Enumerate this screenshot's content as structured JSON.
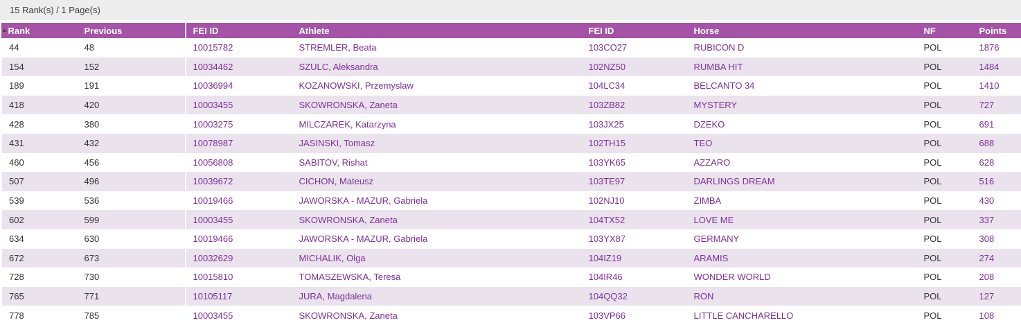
{
  "topbar": {
    "summary_text": "15 Rank(s) / 1 Page(s)"
  },
  "colors": {
    "header_bg": "#a553a7",
    "header_text": "#ffffff",
    "alt_row_bg": "#eae2ed",
    "link_text": "#7f2f9a",
    "plain_text": "#333333",
    "topbar_bg": "#ededed"
  },
  "table": {
    "sort_icon": "▲",
    "sorted_column": "Rank",
    "sort_direction": "ascending",
    "columns": [
      {
        "key": "rank",
        "label": "Rank",
        "cell_name": "rank-cell",
        "link": false
      },
      {
        "key": "previous",
        "label": "Previous",
        "cell_name": "previous-cell",
        "link": false
      },
      {
        "key": "athlete_fei_id",
        "label": "FEI ID",
        "cell_name": "athlete-fei-id-link",
        "link": true
      },
      {
        "key": "athlete",
        "label": "Athlete",
        "cell_name": "athlete-link",
        "link": true
      },
      {
        "key": "horse_fei_id",
        "label": "FEI ID",
        "cell_name": "horse-fei-id-link",
        "link": true
      },
      {
        "key": "horse",
        "label": "Horse",
        "cell_name": "horse-link",
        "link": true
      },
      {
        "key": "nf",
        "label": "NF",
        "cell_name": "nf-cell",
        "link": false
      },
      {
        "key": "points",
        "label": "Points",
        "cell_name": "points-link",
        "link": true
      }
    ],
    "rows": [
      {
        "rank": "44",
        "previous": "48",
        "athlete_fei_id": "10015782",
        "athlete": "STREMLER, Beata",
        "horse_fei_id": "103CO27",
        "horse": "RUBICON D",
        "nf": "POL",
        "points": "1876"
      },
      {
        "rank": "154",
        "previous": "152",
        "athlete_fei_id": "10034462",
        "athlete": "SZULC, Aleksandra",
        "horse_fei_id": "102NZ50",
        "horse": "RUMBA HIT",
        "nf": "POL",
        "points": "1484"
      },
      {
        "rank": "189",
        "previous": "191",
        "athlete_fei_id": "10036994",
        "athlete": "KOZANOWSKI, Przemyslaw",
        "horse_fei_id": "104LC34",
        "horse": "BELCANTO 34",
        "nf": "POL",
        "points": "1410"
      },
      {
        "rank": "418",
        "previous": "420",
        "athlete_fei_id": "10003455",
        "athlete": "SKOWRONSKA, Zaneta",
        "horse_fei_id": "103ZB82",
        "horse": "MYSTERY",
        "nf": "POL",
        "points": "727"
      },
      {
        "rank": "428",
        "previous": "380",
        "athlete_fei_id": "10003275",
        "athlete": "MILCZAREK, Katarzyna",
        "horse_fei_id": "103JX25",
        "horse": "DZEKO",
        "nf": "POL",
        "points": "691"
      },
      {
        "rank": "431",
        "previous": "432",
        "athlete_fei_id": "10078987",
        "athlete": "JASINSKI, Tomasz",
        "horse_fei_id": "102TH15",
        "horse": "TEO",
        "nf": "POL",
        "points": "688"
      },
      {
        "rank": "460",
        "previous": "456",
        "athlete_fei_id": "10056808",
        "athlete": "SABITOV, Rishat",
        "horse_fei_id": "103YK65",
        "horse": "AZZARO",
        "nf": "POL",
        "points": "628"
      },
      {
        "rank": "507",
        "previous": "496",
        "athlete_fei_id": "10039672",
        "athlete": "CICHON, Mateusz",
        "horse_fei_id": "103TE97",
        "horse": "DARLINGS DREAM",
        "nf": "POL",
        "points": "516"
      },
      {
        "rank": "539",
        "previous": "536",
        "athlete_fei_id": "10019466",
        "athlete": "JAWORSKA - MAZUR, Gabriela",
        "horse_fei_id": "102NJ10",
        "horse": "ZIMBA",
        "nf": "POL",
        "points": "430"
      },
      {
        "rank": "602",
        "previous": "599",
        "athlete_fei_id": "10003455",
        "athlete": "SKOWRONSKA, Zaneta",
        "horse_fei_id": "104TX52",
        "horse": "LOVE ME",
        "nf": "POL",
        "points": "337"
      },
      {
        "rank": "634",
        "previous": "630",
        "athlete_fei_id": "10019466",
        "athlete": "JAWORSKA - MAZUR, Gabriela",
        "horse_fei_id": "103YX87",
        "horse": "GERMANY",
        "nf": "POL",
        "points": "308"
      },
      {
        "rank": "672",
        "previous": "673",
        "athlete_fei_id": "10032629",
        "athlete": "MICHALIK, Olga",
        "horse_fei_id": "104IZ19",
        "horse": "ARAMIS",
        "nf": "POL",
        "points": "274"
      },
      {
        "rank": "728",
        "previous": "730",
        "athlete_fei_id": "10015810",
        "athlete": "TOMASZEWSKA, Teresa",
        "horse_fei_id": "104IR46",
        "horse": "WONDER WORLD",
        "nf": "POL",
        "points": "208"
      },
      {
        "rank": "765",
        "previous": "771",
        "athlete_fei_id": "10105117",
        "athlete": "JURA, Magdalena",
        "horse_fei_id": "104QQ32",
        "horse": "RON",
        "nf": "POL",
        "points": "127"
      },
      {
        "rank": "778",
        "previous": "785",
        "athlete_fei_id": "10003455",
        "athlete": "SKOWRONSKA, Zaneta",
        "horse_fei_id": "103VP66",
        "horse": "LITTLE CANCHARELLO",
        "nf": "POL",
        "points": "108"
      }
    ]
  }
}
